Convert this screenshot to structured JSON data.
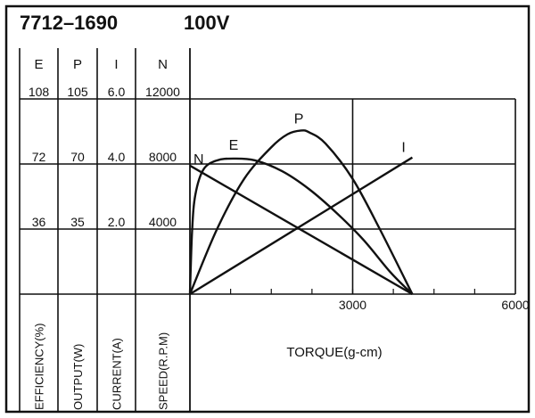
{
  "chart_data": {
    "type": "line",
    "title": "7712–1690",
    "subtitle": "100V",
    "xlabel": "TORQUE(g-cm)",
    "xlim": [
      0,
      6000
    ],
    "x_ticks": [
      "3000",
      "6000"
    ],
    "grid": true,
    "axes": [
      {
        "header": "E",
        "label": "EFFICIENCY(%)",
        "ticks": [
          "36",
          "72",
          "108"
        ],
        "range": [
          0,
          144
        ]
      },
      {
        "header": "P",
        "label": "OUTPUT(W)",
        "ticks": [
          "35",
          "70",
          "105"
        ],
        "range": [
          0,
          140
        ]
      },
      {
        "header": "I",
        "label": "CURRENT(A)",
        "ticks": [
          "2.0",
          "4.0",
          "6.0"
        ],
        "range": [
          0,
          8
        ]
      },
      {
        "header": "N",
        "label": "SPEED(R.P.M)",
        "ticks": [
          "4000",
          "8000",
          "12000"
        ],
        "range": [
          0,
          16000
        ]
      }
    ],
    "series": [
      {
        "name": "N",
        "axis": 3,
        "x": [
          0,
          4100
        ],
        "values": [
          7900,
          0
        ]
      },
      {
        "name": "I",
        "axis": 2,
        "x": [
          0,
          4100
        ],
        "values": [
          0,
          4.2
        ]
      },
      {
        "name": "E",
        "axis": 0,
        "x": [
          0,
          40,
          100,
          250,
          500,
          800,
          1200,
          1700,
          2200,
          2700,
          3200,
          3700,
          4100
        ],
        "values": [
          0,
          35,
          55,
          69,
          74,
          75,
          74,
          68,
          58,
          45,
          30,
          12,
          0
        ]
      },
      {
        "name": "P",
        "axis": 1,
        "x": [
          0,
          500,
          1000,
          1500,
          1800,
          2050,
          2200,
          2500,
          3000,
          3500,
          4100
        ],
        "values": [
          0,
          35,
          62,
          79,
          86,
          88,
          87,
          81,
          62,
          35,
          0
        ]
      }
    ]
  },
  "colors": {
    "line": "#111111",
    "background": "#ffffff"
  }
}
